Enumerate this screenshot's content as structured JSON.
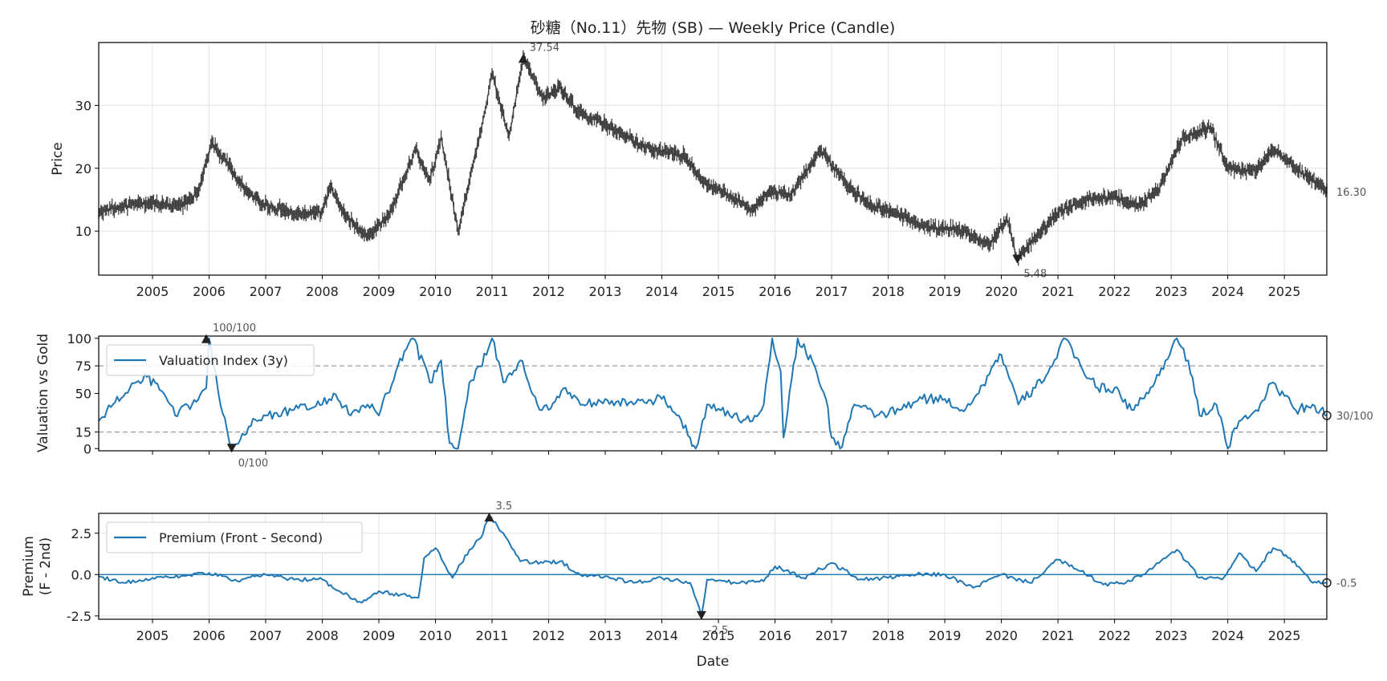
{
  "chart_data": [
    {
      "type": "candlestick",
      "title": "砂糖（No.11）先物 (SB) — Weekly Price (Candle)",
      "ylabel": "Price",
      "xlim": [
        2004.05,
        2025.75
      ],
      "ylim": [
        3.0,
        40.0
      ],
      "yticks": [
        10,
        20,
        30
      ],
      "xticks": [
        2005,
        2006,
        2007,
        2008,
        2009,
        2010,
        2011,
        2012,
        2013,
        2014,
        2015,
        2016,
        2017,
        2018,
        2019,
        2020,
        2021,
        2022,
        2023,
        2024,
        2025
      ],
      "grid": true,
      "series": [
        {
          "name": "Price",
          "color": "#404040",
          "points": [
            [
              2004.05,
              13.0
            ],
            [
              2004.5,
              14.0
            ],
            [
              2005.0,
              14.6
            ],
            [
              2005.5,
              14.0
            ],
            [
              2005.8,
              16.0
            ],
            [
              2006.05,
              24.0
            ],
            [
              2006.3,
              21.0
            ],
            [
              2006.6,
              17.0
            ],
            [
              2006.9,
              14.5
            ],
            [
              2007.5,
              12.7
            ],
            [
              2008.0,
              13.0
            ],
            [
              2008.15,
              17.0
            ],
            [
              2008.4,
              12.5
            ],
            [
              2008.8,
              9.0
            ],
            [
              2009.2,
              13.0
            ],
            [
              2009.65,
              23.0
            ],
            [
              2009.9,
              18.0
            ],
            [
              2010.1,
              25.0
            ],
            [
              2010.4,
              10.0
            ],
            [
              2010.8,
              26.0
            ],
            [
              2011.0,
              35.0
            ],
            [
              2011.3,
              25.0
            ],
            [
              2011.55,
              37.54
            ],
            [
              2011.9,
              31.0
            ],
            [
              2012.2,
              33.0
            ],
            [
              2012.5,
              29.0
            ],
            [
              2013.0,
              27.0
            ],
            [
              2013.8,
              23.0
            ],
            [
              2014.4,
              22.0
            ],
            [
              2014.7,
              18.0
            ],
            [
              2015.2,
              15.5
            ],
            [
              2015.6,
              13.5
            ],
            [
              2015.9,
              16.0
            ],
            [
              2016.3,
              16.0
            ],
            [
              2016.8,
              23.0
            ],
            [
              2017.3,
              17.0
            ],
            [
              2017.7,
              14.0
            ],
            [
              2018.2,
              12.5
            ],
            [
              2018.7,
              10.5
            ],
            [
              2019.2,
              10.5
            ],
            [
              2019.8,
              8.0
            ],
            [
              2020.1,
              12.0
            ],
            [
              2020.28,
              5.48
            ],
            [
              2020.6,
              9.0
            ],
            [
              2021.0,
              13.0
            ],
            [
              2021.5,
              15.0
            ],
            [
              2022.0,
              15.5
            ],
            [
              2022.4,
              14.0
            ],
            [
              2022.8,
              17.0
            ],
            [
              2023.2,
              25.0
            ],
            [
              2023.7,
              26.5
            ],
            [
              2024.0,
              20.0
            ],
            [
              2024.5,
              19.5
            ],
            [
              2024.8,
              23.0
            ],
            [
              2025.2,
              20.0
            ],
            [
              2025.75,
              16.3
            ]
          ]
        }
      ],
      "annotations": [
        {
          "label": "37.54",
          "x": 2011.55,
          "y": 37.54,
          "marker": "up",
          "text_pos": "above"
        },
        {
          "label": "5.48",
          "x": 2020.28,
          "y": 5.48,
          "marker": "down",
          "text_pos": "below"
        },
        {
          "label": "16.30",
          "x": 2025.75,
          "y": 16.3,
          "marker": "none",
          "text_pos": "right-margin"
        }
      ]
    },
    {
      "type": "line",
      "ylabel": "Valuation vs Gold",
      "xlim": [
        2004.05,
        2025.75
      ],
      "ylim": [
        -2,
        102
      ],
      "yticks": [
        0,
        15,
        50,
        75,
        100
      ],
      "xticks": [
        2005,
        2006,
        2007,
        2008,
        2009,
        2010,
        2011,
        2012,
        2013,
        2014,
        2015,
        2016,
        2017,
        2018,
        2019,
        2020,
        2021,
        2022,
        2023,
        2024,
        2025
      ],
      "grid": false,
      "legend": "upper-left",
      "reference_lines": [
        15,
        75
      ],
      "series": [
        {
          "name": "Valuation Index (3y)",
          "color": "#1f77b4",
          "points": [
            [
              2004.05,
              25
            ],
            [
              2004.3,
              40
            ],
            [
              2004.6,
              55
            ],
            [
              2004.9,
              65
            ],
            [
              2005.2,
              50
            ],
            [
              2005.4,
              30
            ],
            [
              2005.7,
              40
            ],
            [
              2005.95,
              55
            ],
            [
              2006.0,
              100
            ],
            [
              2006.2,
              40
            ],
            [
              2006.4,
              0
            ],
            [
              2006.7,
              20
            ],
            [
              2007.0,
              30
            ],
            [
              2007.5,
              35
            ],
            [
              2008.0,
              40
            ],
            [
              2008.2,
              50
            ],
            [
              2008.5,
              30
            ],
            [
              2008.8,
              40
            ],
            [
              2009.0,
              30
            ],
            [
              2009.3,
              70
            ],
            [
              2009.6,
              100
            ],
            [
              2009.9,
              60
            ],
            [
              2010.1,
              80
            ],
            [
              2010.25,
              5
            ],
            [
              2010.4,
              0
            ],
            [
              2010.6,
              60
            ],
            [
              2010.9,
              85
            ],
            [
              2011.0,
              100
            ],
            [
              2011.2,
              60
            ],
            [
              2011.5,
              80
            ],
            [
              2011.8,
              40
            ],
            [
              2012.0,
              35
            ],
            [
              2012.3,
              55
            ],
            [
              2012.6,
              40
            ],
            [
              2013.0,
              45
            ],
            [
              2013.5,
              40
            ],
            [
              2014.0,
              45
            ],
            [
              2014.3,
              30
            ],
            [
              2014.5,
              10
            ],
            [
              2014.6,
              0
            ],
            [
              2014.8,
              40
            ],
            [
              2015.2,
              30
            ],
            [
              2015.6,
              25
            ],
            [
              2015.8,
              40
            ],
            [
              2015.95,
              100
            ],
            [
              2016.1,
              70
            ],
            [
              2016.15,
              10
            ],
            [
              2016.4,
              100
            ],
            [
              2016.7,
              75
            ],
            [
              2016.9,
              45
            ],
            [
              2017.0,
              10
            ],
            [
              2017.15,
              0
            ],
            [
              2017.4,
              40
            ],
            [
              2017.8,
              30
            ],
            [
              2018.2,
              35
            ],
            [
              2018.6,
              45
            ],
            [
              2019.0,
              45
            ],
            [
              2019.3,
              35
            ],
            [
              2019.6,
              50
            ],
            [
              2019.9,
              80
            ],
            [
              2020.0,
              85
            ],
            [
              2020.3,
              40
            ],
            [
              2020.6,
              55
            ],
            [
              2020.9,
              75
            ],
            [
              2021.1,
              100
            ],
            [
              2021.4,
              75
            ],
            [
              2021.7,
              55
            ],
            [
              2022.0,
              55
            ],
            [
              2022.3,
              35
            ],
            [
              2022.6,
              50
            ],
            [
              2022.9,
              80
            ],
            [
              2023.1,
              100
            ],
            [
              2023.3,
              80
            ],
            [
              2023.5,
              30
            ],
            [
              2023.8,
              40
            ],
            [
              2024.0,
              0
            ],
            [
              2024.2,
              25
            ],
            [
              2024.5,
              35
            ],
            [
              2024.8,
              60
            ],
            [
              2025.2,
              35
            ],
            [
              2025.5,
              40
            ],
            [
              2025.75,
              30
            ]
          ]
        }
      ],
      "annotations": [
        {
          "label": "100/100",
          "x": 2005.95,
          "y": 100,
          "marker": "up",
          "text_pos": "above"
        },
        {
          "label": "0/100",
          "x": 2006.4,
          "y": 0,
          "marker": "down",
          "text_pos": "below"
        },
        {
          "label": "30/100",
          "x": 2025.75,
          "y": 30,
          "marker": "circle",
          "text_pos": "right-margin"
        }
      ]
    },
    {
      "type": "line",
      "ylabel": "Premium\n(F - 2nd)",
      "xlabel": "Date",
      "xlim": [
        2004.05,
        2025.75
      ],
      "ylim": [
        -2.7,
        3.7
      ],
      "yticks": [
        -2.5,
        0.0,
        2.5
      ],
      "ytick_labels": [
        "-2.5",
        "0.0",
        "2.5"
      ],
      "xticks": [
        2005,
        2006,
        2007,
        2008,
        2009,
        2010,
        2011,
        2012,
        2013,
        2014,
        2015,
        2016,
        2017,
        2018,
        2019,
        2020,
        2021,
        2022,
        2023,
        2024,
        2025
      ],
      "grid": true,
      "legend": "upper-left",
      "zero_line": true,
      "series": [
        {
          "name": "Premium (Front - Second)",
          "color": "#1f77b4",
          "points": [
            [
              2004.05,
              -0.1
            ],
            [
              2004.5,
              -0.5
            ],
            [
              2005.0,
              -0.2
            ],
            [
              2005.5,
              -0.1
            ],
            [
              2006.0,
              0.1
            ],
            [
              2006.5,
              -0.4
            ],
            [
              2007.0,
              0.0
            ],
            [
              2007.5,
              -0.3
            ],
            [
              2008.0,
              -0.3
            ],
            [
              2008.3,
              -1.0
            ],
            [
              2008.7,
              -1.7
            ],
            [
              2009.0,
              -1.0
            ],
            [
              2009.5,
              -1.3
            ],
            [
              2009.7,
              -1.4
            ],
            [
              2009.8,
              1.0
            ],
            [
              2010.0,
              1.6
            ],
            [
              2010.3,
              -0.2
            ],
            [
              2010.6,
              1.5
            ],
            [
              2010.8,
              2.2
            ],
            [
              2010.95,
              3.5
            ],
            [
              2011.2,
              2.5
            ],
            [
              2011.5,
              0.8
            ],
            [
              2011.9,
              0.7
            ],
            [
              2012.2,
              0.8
            ],
            [
              2012.6,
              -0.1
            ],
            [
              2013.0,
              -0.1
            ],
            [
              2013.5,
              -0.5
            ],
            [
              2014.0,
              -0.2
            ],
            [
              2014.5,
              -0.5
            ],
            [
              2014.7,
              -2.5
            ],
            [
              2014.8,
              -0.3
            ],
            [
              2015.3,
              -0.5
            ],
            [
              2015.8,
              -0.4
            ],
            [
              2016.0,
              0.5
            ],
            [
              2016.5,
              -0.2
            ],
            [
              2017.0,
              0.7
            ],
            [
              2017.5,
              -0.3
            ],
            [
              2018.0,
              -0.2
            ],
            [
              2018.5,
              0.0
            ],
            [
              2019.0,
              0.0
            ],
            [
              2019.5,
              -0.8
            ],
            [
              2020.0,
              0.0
            ],
            [
              2020.5,
              -0.5
            ],
            [
              2021.0,
              0.9
            ],
            [
              2021.4,
              0.2
            ],
            [
              2021.8,
              -0.6
            ],
            [
              2022.2,
              -0.5
            ],
            [
              2022.5,
              0.0
            ],
            [
              2022.9,
              1.0
            ],
            [
              2023.1,
              1.5
            ],
            [
              2023.5,
              -0.2
            ],
            [
              2023.9,
              -0.3
            ],
            [
              2024.2,
              1.3
            ],
            [
              2024.5,
              0.2
            ],
            [
              2024.8,
              1.6
            ],
            [
              2025.1,
              1.0
            ],
            [
              2025.5,
              -0.5
            ],
            [
              2025.75,
              -0.5
            ]
          ]
        }
      ],
      "annotations": [
        {
          "label": "3.5",
          "x": 2010.95,
          "y": 3.5,
          "marker": "up",
          "text_pos": "above"
        },
        {
          "label": "-2.5",
          "x": 2014.7,
          "y": -2.5,
          "marker": "down",
          "text_pos": "below"
        },
        {
          "label": "-0.5",
          "x": 2025.75,
          "y": -0.5,
          "marker": "circle",
          "text_pos": "right-margin"
        }
      ]
    }
  ]
}
